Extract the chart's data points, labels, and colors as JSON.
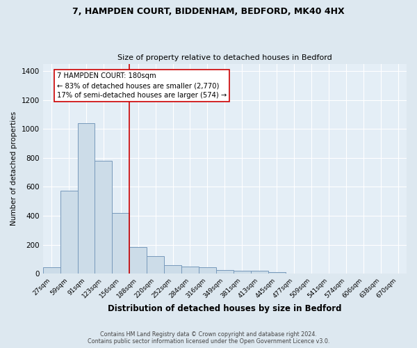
{
  "title_line1": "7, HAMPDEN COURT, BIDDENHAM, BEDFORD, MK40 4HX",
  "title_line2": "Size of property relative to detached houses in Bedford",
  "xlabel": "Distribution of detached houses by size in Bedford",
  "ylabel": "Number of detached properties",
  "categories": [
    "27sqm",
    "59sqm",
    "91sqm",
    "123sqm",
    "156sqm",
    "188sqm",
    "220sqm",
    "252sqm",
    "284sqm",
    "316sqm",
    "349sqm",
    "381sqm",
    "413sqm",
    "445sqm",
    "477sqm",
    "509sqm",
    "541sqm",
    "574sqm",
    "606sqm",
    "638sqm",
    "670sqm"
  ],
  "values": [
    45,
    575,
    1040,
    780,
    420,
    185,
    120,
    60,
    47,
    45,
    25,
    20,
    18,
    10,
    0,
    0,
    0,
    0,
    0,
    0,
    0
  ],
  "bar_color": "#ccdce8",
  "bar_edge_color": "#7799bb",
  "vline_color": "#cc0000",
  "annotation_text": "7 HAMPDEN COURT: 180sqm\n← 83% of detached houses are smaller (2,770)\n17% of semi-detached houses are larger (574) →",
  "annotation_box_color": "#ffffff",
  "annotation_box_edge": "#cc0000",
  "ylim": [
    0,
    1450
  ],
  "yticks": [
    0,
    200,
    400,
    600,
    800,
    1000,
    1200,
    1400
  ],
  "footnote": "Contains HM Land Registry data © Crown copyright and database right 2024.\nContains public sector information licensed under the Open Government Licence v3.0.",
  "bg_color": "#dde8f0",
  "plot_bg_color": "#e4eef6",
  "highlight_index": 5
}
